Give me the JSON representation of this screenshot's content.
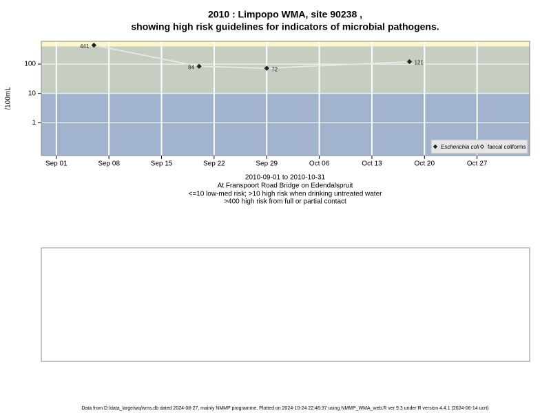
{
  "chart_data": {
    "type": "line",
    "title": [
      "2010 : Limpopo WMA, site 90238 ,",
      "showing high risk guidelines for indicators of microbial pathogens."
    ],
    "y_label": "/100mL",
    "subtitle": [
      "2010-09-01 to 2010-10-31",
      "At Franspoort Road Bridge on Edendalspruit",
      "<=10 low-med risk; >10 high risk when drinking untreated water",
      ">400 high risk from full or partial contact"
    ],
    "x": [
      "2010-09-06",
      "2010-09-20",
      "2010-09-29",
      "2010-10-18"
    ],
    "series": [
      {
        "name": "Escherichia coli",
        "color": "#222222",
        "line_color": "#e6e6e6",
        "values": [
          441,
          84,
          72,
          121
        ]
      },
      {
        "name": "faecal coliforms",
        "color": "#222222",
        "values": [
          null,
          null,
          null,
          null
        ]
      }
    ],
    "xlim": [
      "2010-08-30",
      "2010-11-03"
    ],
    "xticks": [
      {
        "value": "2010-09-01",
        "label": "Sep 01"
      },
      {
        "value": "2010-09-08",
        "label": "Sep 08"
      },
      {
        "value": "2010-09-15",
        "label": "Sep 15"
      },
      {
        "value": "2010-09-22",
        "label": "Sep 22"
      },
      {
        "value": "2010-09-29",
        "label": "Sep 29"
      },
      {
        "value": "2010-10-06",
        "label": "Oct 06"
      },
      {
        "value": "2010-10-13",
        "label": "Oct 13"
      },
      {
        "value": "2010-10-20",
        "label": "Oct 20"
      },
      {
        "value": "2010-10-27",
        "label": "Oct 27"
      }
    ],
    "ylim": [
      0.075,
      600
    ],
    "yticks": [
      1,
      10,
      100
    ],
    "log_y": true,
    "grid": true,
    "legend_position": "bottom-right",
    "bands": [
      {
        "from": 400,
        "to": 600,
        "color": "#fbf7c9"
      },
      {
        "from": 10,
        "to": 400,
        "color": "#c5cec1"
      },
      {
        "from": 0.075,
        "to": 10,
        "color": "#a2b4cd"
      }
    ],
    "footer": "Data from D:/data_large/wq/wms.db dated 2024-08-27, mainly NMMP programme. Plotted on 2024-10-24 22:46:37 using NMMP_WMA_web.R ver 9.3 under R version 4.4.1 (2024-06-14 ucrt)"
  }
}
